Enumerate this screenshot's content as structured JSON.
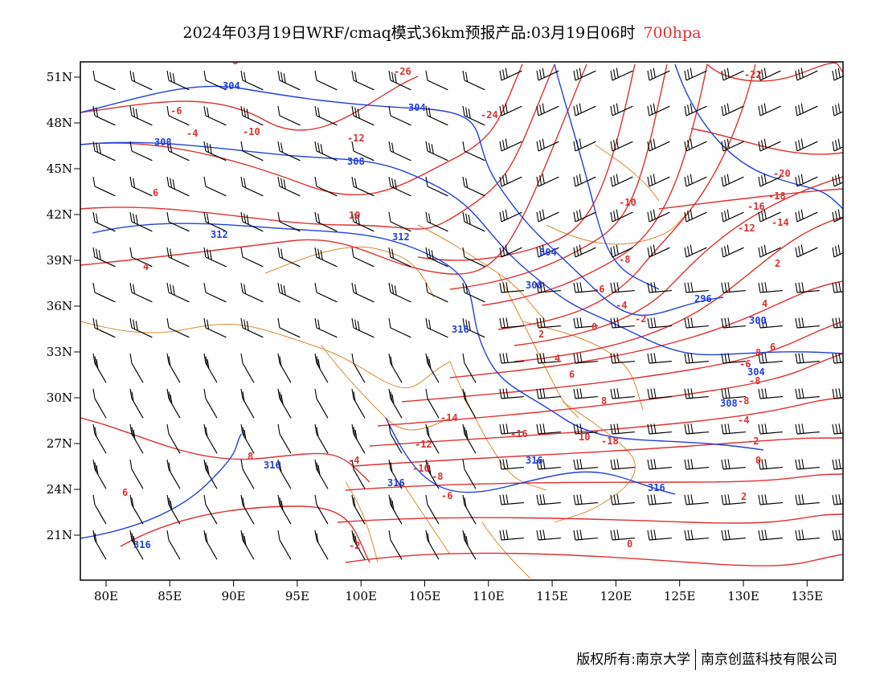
{
  "title": {
    "text": "2024年03月19日WRF/cmaq模式36km预报产品:03月19日06时",
    "level": "700hpa",
    "level_color": "#e03030"
  },
  "axes": {
    "x_ticks": [
      "80E",
      "85E",
      "90E",
      "95E",
      "100E",
      "105E",
      "110E",
      "115E",
      "120E",
      "125E",
      "130E",
      "135E"
    ],
    "y_ticks": [
      "51N",
      "48N",
      "45N",
      "42N",
      "39N",
      "36N",
      "33N",
      "30N",
      "27N",
      "24N",
      "21N"
    ]
  },
  "contour_labels": {
    "temperature": [
      "-8",
      "-6",
      "-4",
      "-10",
      "-12",
      "-26",
      "-24",
      "-22",
      "-20",
      "-18",
      "-16",
      "-14",
      "-12",
      "-10",
      "-8",
      "-6",
      "-4",
      "-2",
      "0",
      "2",
      "4",
      "6",
      "8",
      "10",
      "-18",
      "-16",
      "-14",
      "-12",
      "-10",
      "-8",
      "-6",
      "-4",
      "-2",
      "0",
      "2",
      "4",
      "6",
      "8",
      "-6",
      "-8",
      "-8",
      "-4",
      "-2",
      "0",
      "2",
      "4",
      "6",
      "8",
      "10",
      "6",
      "6"
    ],
    "geopotential": [
      "304",
      "304",
      "308",
      "308",
      "312",
      "312",
      "304",
      "308",
      "316",
      "316",
      "316",
      "316",
      "316",
      "296",
      "300",
      "304",
      "308"
    ]
  },
  "colors": {
    "temperature": "#e03030",
    "geopotential": "#2040e0",
    "boundary": "#d88a2e",
    "wind": "#000000"
  },
  "footer": {
    "left": "版权所有:南京大学",
    "right": "南京创蓝科技有限公司"
  }
}
